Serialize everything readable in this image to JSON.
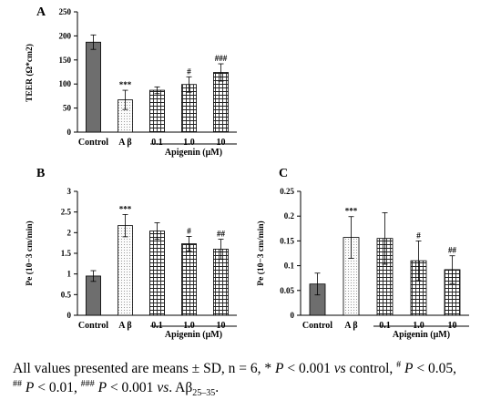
{
  "chart_data": [
    {
      "panel": "A",
      "type": "bar",
      "ylabel": "TEER (Ω*cm2)",
      "ylim": [
        0,
        250
      ],
      "yticks": [
        "0",
        "50",
        "100",
        "150",
        "200",
        "250"
      ],
      "categories": [
        "Control",
        "A β",
        "0.1",
        "1.0",
        "10"
      ],
      "values": [
        187,
        67,
        87,
        99,
        124
      ],
      "errors": [
        15,
        20,
        7,
        16,
        18
      ],
      "marks": [
        "",
        "***",
        "",
        "#",
        "###"
      ],
      "group_label": "Apigenin (μM)",
      "grid": false
    },
    {
      "panel": "B",
      "type": "bar",
      "ylabel": "Pe (10−3 cm/min)",
      "ylim": [
        0,
        3
      ],
      "yticks": [
        "0",
        "0.5",
        "1",
        "1.5",
        "2",
        "2.5",
        "3"
      ],
      "categories": [
        "Control",
        "A β",
        "0.1",
        "1.0",
        "10"
      ],
      "values": [
        0.95,
        2.17,
        2.04,
        1.73,
        1.6
      ],
      "errors": [
        0.13,
        0.27,
        0.2,
        0.18,
        0.24
      ],
      "marks": [
        "",
        "***",
        "",
        "#",
        "##"
      ],
      "group_label": "Apigenin (μM)",
      "grid": false
    },
    {
      "panel": "C",
      "type": "bar",
      "ylabel": "Pe (10−3 cm/min)",
      "ylim": [
        0,
        0.25
      ],
      "yticks": [
        "0",
        "0.05",
        "0.1",
        "0.15",
        "0.2",
        "0.25"
      ],
      "categories": [
        "Control",
        "A β",
        "0.1",
        "1.0",
        "10"
      ],
      "values": [
        0.063,
        0.157,
        0.155,
        0.11,
        0.092
      ],
      "errors": [
        0.022,
        0.042,
        0.052,
        0.04,
        0.028
      ],
      "marks": [
        "",
        "***",
        "",
        "#",
        "##"
      ],
      "group_label": "Apigenin (μM)",
      "grid": false
    }
  ],
  "colors": {
    "control": "#6e6e6e",
    "abeta": "#f2f2f2",
    "apigenin": "#ffffff",
    "edge": "#000000"
  },
  "caption": {
    "line1_a": "All values presented are means ± SD, n = 6, * ",
    "line1_p1": "P",
    "line1_b": " < 0.001 ",
    "line1_vs1": "vs",
    "line1_c": " control, ",
    "line1_sup1": "#",
    "line1_p2": "P",
    "line1_d": " < 0.05,",
    "line2_sup2": "##",
    "line2_p3": "P",
    "line2_e": " < 0.01, ",
    "line2_sup3": "###",
    "line2_p4": "P",
    "line2_f": " < 0.001 ",
    "line2_vs2": "vs",
    "line2_g": ". Aβ",
    "line2_sub": "25–35",
    "line2_h": "."
  }
}
